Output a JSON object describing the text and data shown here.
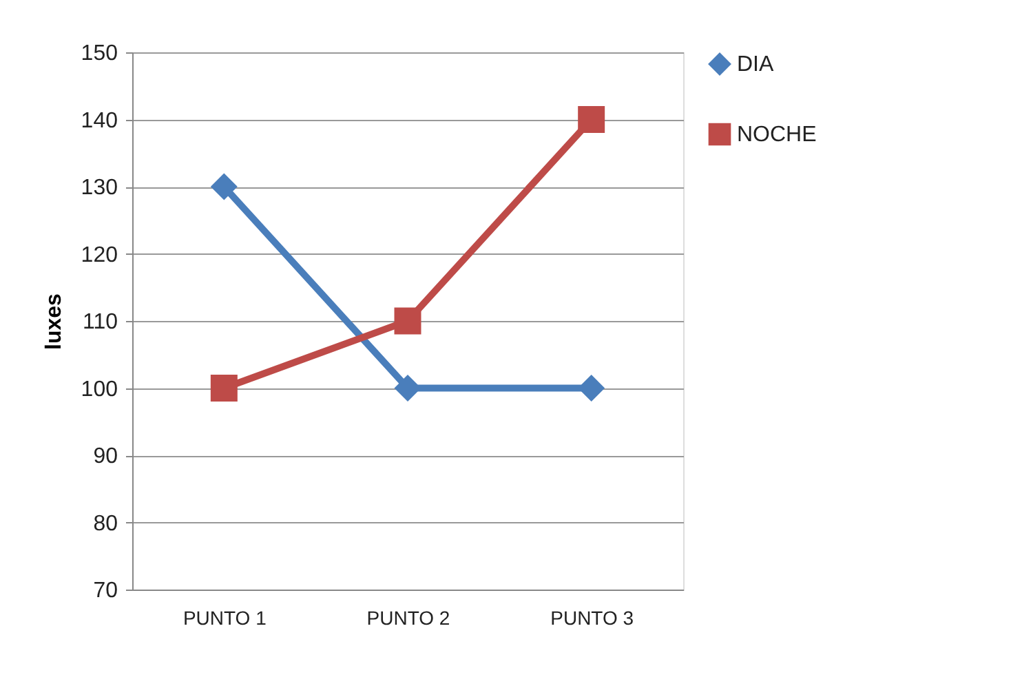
{
  "chart_data": {
    "type": "line",
    "ylabel": "luxes",
    "categories": [
      "PUNTO 1",
      "PUNTO 2",
      "PUNTO 3"
    ],
    "series": [
      {
        "name": "DIA",
        "color": "#4a7ebb",
        "marker": "diamond",
        "values": [
          130,
          100,
          100
        ]
      },
      {
        "name": "NOCHE",
        "color": "#be4b48",
        "marker": "square",
        "values": [
          100,
          110,
          140
        ]
      }
    ],
    "ylim": [
      70,
      150
    ],
    "yticks": [
      70,
      80,
      90,
      100,
      110,
      120,
      130,
      140,
      150
    ],
    "grid": "y",
    "legend": "right"
  }
}
